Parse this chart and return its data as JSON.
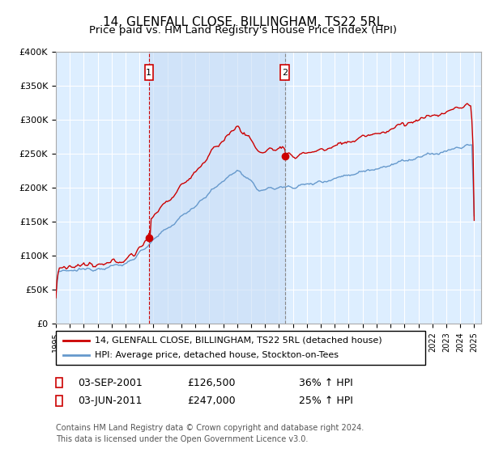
{
  "title": "14, GLENFALL CLOSE, BILLINGHAM, TS22 5RL",
  "subtitle": "Price paid vs. HM Land Registry's House Price Index (HPI)",
  "legend_line1": "14, GLENFALL CLOSE, BILLINGHAM, TS22 5RL (detached house)",
  "legend_line2": "HPI: Average price, detached house, Stockton-on-Tees",
  "annotation1_date": "03-SEP-2001",
  "annotation1_price": 126500,
  "annotation1_price_str": "£126,500",
  "annotation1_pct": "36% ↑ HPI",
  "annotation2_date": "03-JUN-2011",
  "annotation2_price": 247000,
  "annotation2_price_str": "£247,000",
  "annotation2_pct": "25% ↑ HPI",
  "footnote1": "Contains HM Land Registry data © Crown copyright and database right 2024.",
  "footnote2": "This data is licensed under the Open Government Licence v3.0.",
  "red_color": "#cc0000",
  "blue_color": "#6699cc",
  "shade_color": "#ddeeff",
  "background_color": "#ddeeff",
  "grid_color": "#ffffff",
  "ylim": [
    0,
    400000
  ],
  "ytick_vals": [
    0,
    50000,
    100000,
    150000,
    200000,
    250000,
    300000,
    350000,
    400000
  ],
  "ytick_labels": [
    "£0",
    "£50K",
    "£100K",
    "£150K",
    "£200K",
    "£250K",
    "£300K",
    "£350K",
    "£400K"
  ],
  "ann1_x": 2001.67,
  "ann2_x": 2011.42,
  "ann1_y": 126500,
  "ann2_y": 247000,
  "xmin": 1995,
  "xmax": 2025.5
}
